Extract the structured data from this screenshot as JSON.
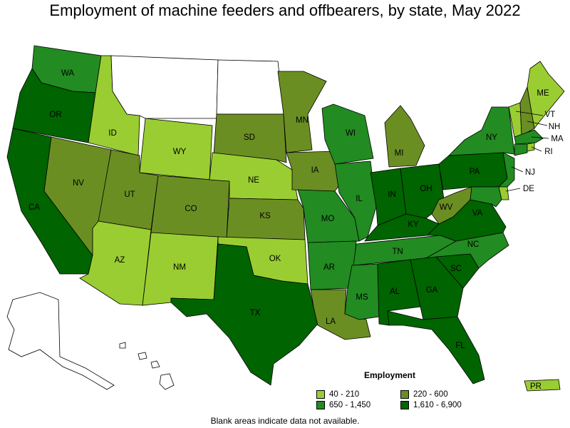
{
  "title": "Employment of machine feeders and offbearers, by state, May 2022",
  "legend": {
    "title": "Employment",
    "items": [
      {
        "label": "40 - 210",
        "color": "#9acd32"
      },
      {
        "label": "220 - 600",
        "color": "#6b8e23"
      },
      {
        "label": "650 - 1,450",
        "color": "#228b22"
      },
      {
        "label": "1,610 - 6,900",
        "color": "#006400"
      }
    ]
  },
  "footnote": "Blank areas indicate data not available.",
  "colors": {
    "no_data": "#ffffff",
    "stroke": "#000000"
  },
  "states": {
    "WA": {
      "label": "WA",
      "bin": 2
    },
    "OR": {
      "label": "OR",
      "bin": 3
    },
    "CA": {
      "label": "CA",
      "bin": 3
    },
    "ID": {
      "label": "ID",
      "bin": 0
    },
    "NV": {
      "label": "NV",
      "bin": 1
    },
    "MT": {
      "label": "",
      "bin": -1
    },
    "WY": {
      "label": "WY",
      "bin": 0
    },
    "UT": {
      "label": "UT",
      "bin": 1
    },
    "AZ": {
      "label": "AZ",
      "bin": 0
    },
    "CO": {
      "label": "CO",
      "bin": 1
    },
    "NM": {
      "label": "NM",
      "bin": 0
    },
    "ND": {
      "label": "",
      "bin": -1
    },
    "SD": {
      "label": "SD",
      "bin": 1
    },
    "NE": {
      "label": "NE",
      "bin": 0
    },
    "KS": {
      "label": "KS",
      "bin": 1
    },
    "OK": {
      "label": "OK",
      "bin": 0
    },
    "TX": {
      "label": "TX",
      "bin": 3
    },
    "MN": {
      "label": "MN",
      "bin": 1
    },
    "IA": {
      "label": "IA",
      "bin": 1
    },
    "MO": {
      "label": "MO",
      "bin": 2
    },
    "AR": {
      "label": "AR",
      "bin": 2
    },
    "LA": {
      "label": "LA",
      "bin": 1
    },
    "WI": {
      "label": "WI",
      "bin": 2
    },
    "IL": {
      "label": "IL",
      "bin": 2
    },
    "MI": {
      "label": "MI",
      "bin": 1
    },
    "IN": {
      "label": "IN",
      "bin": 3
    },
    "OH": {
      "label": "OH",
      "bin": 3
    },
    "KY": {
      "label": "KY",
      "bin": 3
    },
    "TN": {
      "label": "TN",
      "bin": 2
    },
    "MS": {
      "label": "MS",
      "bin": 2
    },
    "AL": {
      "label": "AL",
      "bin": 3
    },
    "GA": {
      "label": "GA",
      "bin": 3
    },
    "FL": {
      "label": "FL",
      "bin": 3
    },
    "SC": {
      "label": "SC",
      "bin": 3
    },
    "NC": {
      "label": "NC",
      "bin": 2
    },
    "VA": {
      "label": "VA",
      "bin": 3
    },
    "WV": {
      "label": "WV",
      "bin": 1
    },
    "PA": {
      "label": "PA",
      "bin": 3
    },
    "NY": {
      "label": "NY",
      "bin": 2
    },
    "VT": {
      "label": "VT",
      "bin": 0
    },
    "NH": {
      "label": "NH",
      "bin": 1
    },
    "ME": {
      "label": "ME",
      "bin": 0
    },
    "MA": {
      "label": "MA",
      "bin": 2
    },
    "RI": {
      "label": "RI",
      "bin": 0
    },
    "CT": {
      "label": "",
      "bin": 2
    },
    "NJ": {
      "label": "NJ",
      "bin": 2
    },
    "DE": {
      "label": "DE",
      "bin": 0
    },
    "MD": {
      "label": "",
      "bin": 2
    },
    "AK": {
      "label": "",
      "bin": -1
    },
    "HI": {
      "label": "",
      "bin": -1
    },
    "PR": {
      "label": "PR",
      "bin": 0
    }
  }
}
